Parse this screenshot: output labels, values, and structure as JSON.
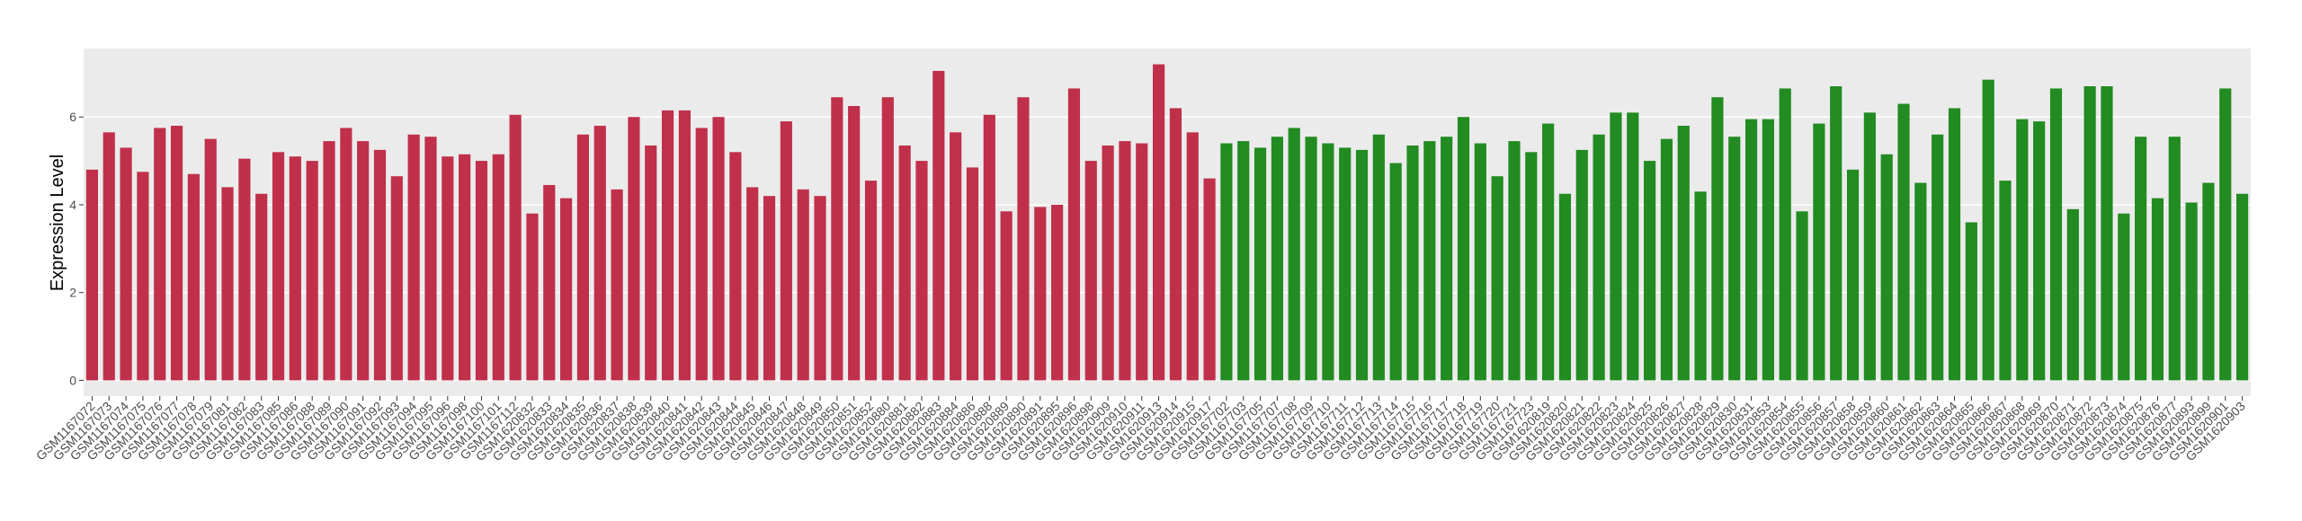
{
  "chart_data": {
    "type": "bar",
    "y_label": "Expression Level",
    "ylim": [
      -0.36,
      7.56
    ],
    "yticks": [
      0,
      2,
      4,
      6
    ],
    "grid": true,
    "series": [
      {
        "color": "#c0304a",
        "categories": [
          "GSM1167072",
          "GSM1167073",
          "GSM1167074",
          "GSM1167075",
          "GSM1167076",
          "GSM1167077",
          "GSM1167078",
          "GSM1167079",
          "GSM1167081",
          "GSM1167082",
          "GSM1167083",
          "GSM1167085",
          "GSM1167086",
          "GSM1167088",
          "GSM1167089",
          "GSM1167090",
          "GSM1167091",
          "GSM1167092",
          "GSM1167093",
          "GSM1167094",
          "GSM1167095",
          "GSM1167096",
          "GSM1167098",
          "GSM1167100",
          "GSM1167101",
          "GSM1167112",
          "GSM1620832",
          "GSM1620833",
          "GSM1620834",
          "GSM1620835",
          "GSM1620836",
          "GSM1620837",
          "GSM1620838",
          "GSM1620839",
          "GSM1620840",
          "GSM1620841",
          "GSM1620842",
          "GSM1620843",
          "GSM1620844",
          "GSM1620845",
          "GSM1620846",
          "GSM1620847",
          "GSM1620848",
          "GSM1620849",
          "GSM1620850",
          "GSM1620851",
          "GSM1620852",
          "GSM1620880",
          "GSM1620881",
          "GSM1620882",
          "GSM1620883",
          "GSM1620884",
          "GSM1620886",
          "GSM1620888",
          "GSM1620889",
          "GSM1620890",
          "GSM1620891",
          "GSM1620895",
          "GSM1620896",
          "GSM1620898",
          "GSM1620909",
          "GSM1620910",
          "GSM1620911",
          "GSM1620913",
          "GSM1620914",
          "GSM1620915",
          "GSM1620917"
        ],
        "values": [
          4.8,
          5.65,
          5.3,
          4.75,
          5.75,
          5.8,
          4.7,
          5.5,
          4.4,
          5.05,
          4.25,
          5.2,
          5.1,
          5.0,
          5.45,
          5.75,
          5.45,
          5.25,
          4.65,
          5.6,
          5.55,
          5.1,
          5.15,
          5.0,
          5.15,
          6.05,
          3.8,
          4.45,
          4.15,
          5.6,
          5.8,
          4.35,
          6.0,
          5.35,
          6.15,
          6.15,
          5.75,
          6.0,
          5.2,
          4.4,
          4.2,
          5.9,
          4.35,
          4.2,
          6.45,
          6.25,
          4.55,
          6.45,
          5.35,
          5.0,
          7.05,
          5.65,
          4.85,
          6.05,
          3.85,
          6.45,
          3.95,
          4.0,
          6.65,
          5.0,
          5.35,
          5.45,
          5.4,
          7.2,
          6.2,
          5.65,
          4.6
        ]
      },
      {
        "color": "#228b22",
        "categories": [
          "GSM1167702",
          "GSM1167703",
          "GSM1167705",
          "GSM1167707",
          "GSM1167708",
          "GSM1167709",
          "GSM1167710",
          "GSM1167711",
          "GSM1167712",
          "GSM1167713",
          "GSM1167714",
          "GSM1167715",
          "GSM1167716",
          "GSM1167717",
          "GSM1167718",
          "GSM1167719",
          "GSM1167720",
          "GSM1167721",
          "GSM1167723",
          "GSM1620819",
          "GSM1620820",
          "GSM1620821",
          "GSM1620822",
          "GSM1620823",
          "GSM1620824",
          "GSM1620825",
          "GSM1620826",
          "GSM1620827",
          "GSM1620828",
          "GSM1620829",
          "GSM1620830",
          "GSM1620831",
          "GSM1620853",
          "GSM1620854",
          "GSM1620855",
          "GSM1620856",
          "GSM1620857",
          "GSM1620858",
          "GSM1620859",
          "GSM1620860",
          "GSM1620861",
          "GSM1620862",
          "GSM1620863",
          "GSM1620864",
          "GSM1620865",
          "GSM1620866",
          "GSM1620867",
          "GSM1620868",
          "GSM1620869",
          "GSM1620870",
          "GSM1620871",
          "GSM1620872",
          "GSM1620873",
          "GSM1620874",
          "GSM1620875",
          "GSM1620876",
          "GSM1620877",
          "GSM1620893",
          "GSM1620899",
          "GSM1620901",
          "GSM1620903"
        ],
        "values": [
          5.4,
          5.45,
          5.3,
          5.55,
          5.75,
          5.55,
          5.4,
          5.3,
          5.25,
          5.6,
          4.95,
          5.35,
          5.45,
          5.55,
          6.0,
          5.4,
          4.65,
          5.45,
          5.2,
          5.85,
          4.25,
          5.25,
          5.6,
          6.1,
          6.1,
          5.0,
          5.5,
          5.8,
          4.3,
          6.45,
          5.55,
          5.95,
          5.95,
          6.65,
          3.85,
          5.85,
          6.7,
          4.8,
          6.1,
          5.15,
          6.3,
          4.5,
          5.6,
          6.2,
          3.6,
          6.85,
          4.55,
          5.95,
          5.9,
          6.65,
          3.9,
          6.7,
          6.7,
          3.8,
          5.55,
          4.15,
          5.55,
          4.05,
          4.5,
          6.65,
          4.25
        ]
      }
    ]
  }
}
